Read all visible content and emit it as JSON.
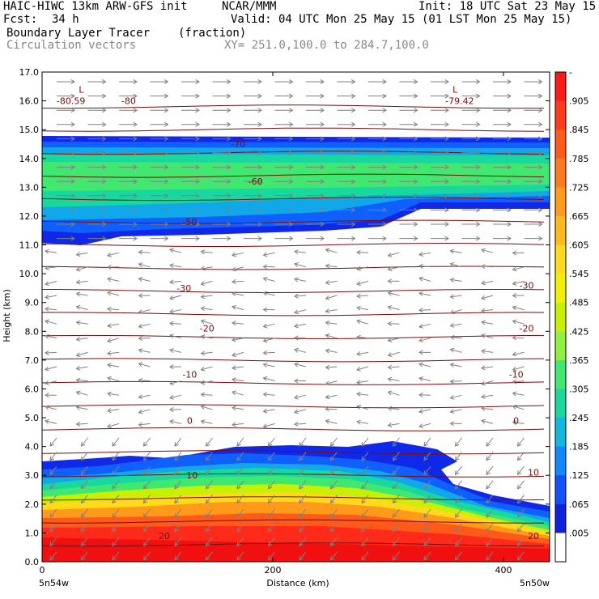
{
  "header": {
    "model": "HAIC-HIWC 13km ARW-GFS init",
    "org": "NCAR/MMM",
    "init": "Init: 18 UTC Sat 23 May 15",
    "fcst_label": "Fcst:",
    "fcst_value": "34 h",
    "valid": "Valid: 04 UTC Mon 25 May 15 (01 LST Mon 25 May 15)",
    "field": "Boundary Layer Tracer",
    "field_units": "(fraction)",
    "vectors": "Circulation vectors",
    "xy": "XY= 251.0,100.0 to 284.7,100.0"
  },
  "chart_data": {
    "type": "heatmap",
    "xlabel": "Distance (km)",
    "ylabel": "Height (km)",
    "xlim": [
      0,
      440
    ],
    "ylim": [
      0,
      17
    ],
    "x_ticks": [
      "0",
      "200",
      "400"
    ],
    "y_ticks": [
      "0.0",
      "1.0",
      "2.0",
      "3.0",
      "4.0",
      "5.0",
      "6.0",
      "7.0",
      "8.0",
      "9.0",
      "10.0",
      "11.0",
      "12.0",
      "13.0",
      "14.0",
      "15.0",
      "16.0",
      "17.0"
    ],
    "x_end_labels": [
      "5n54w",
      "5n50w"
    ],
    "colorbar": {
      "labels": [
        "-",
        ".905",
        ".845",
        ".785",
        ".725",
        ".665",
        ".605",
        ".545",
        ".485",
        ".425",
        ".365",
        ".305",
        ".245",
        ".185",
        ".125",
        ".065",
        ".005"
      ],
      "colors": [
        "#ff1a1a",
        "#ff3a1a",
        "#ff5a1a",
        "#ff7a1a",
        "#ff9a1a",
        "#ffba1a",
        "#ffda1a",
        "#f0f000",
        "#c8f000",
        "#90f040",
        "#40e870",
        "#18d8a0",
        "#10b8e0",
        "#1088ff",
        "#1050ff",
        "#1020e0",
        "#ffffff"
      ]
    },
    "contour_labels": [
      {
        "text": "-80.59",
        "x": 25,
        "y": 16.0
      },
      {
        "text": "-80",
        "x": 75,
        "y": 16.0
      },
      {
        "text": "-79.42",
        "x": 362,
        "y": 16.0
      },
      {
        "text": "L",
        "x": 34,
        "y": 16.4
      },
      {
        "text": "L",
        "x": 358,
        "y": 16.4
      },
      {
        "text": "-70",
        "x": 170,
        "y": 14.5
      },
      {
        "text": "-60",
        "x": 185,
        "y": 13.2
      },
      {
        "text": "-50",
        "x": 128,
        "y": 11.8
      },
      {
        "text": "-30",
        "x": 123,
        "y": 9.5
      },
      {
        "text": "-30",
        "x": 420,
        "y": 9.6
      },
      {
        "text": "-20",
        "x": 143,
        "y": 8.1
      },
      {
        "text": "-20",
        "x": 420,
        "y": 8.1
      },
      {
        "text": "-10",
        "x": 128,
        "y": 6.5
      },
      {
        "text": "-10",
        "x": 411,
        "y": 6.5
      },
      {
        "text": "0",
        "x": 128,
        "y": 4.9
      },
      {
        "text": "0",
        "x": 411,
        "y": 4.9
      },
      {
        "text": "10",
        "x": 130,
        "y": 3.0
      },
      {
        "text": "10",
        "x": 426,
        "y": 3.1
      },
      {
        "text": "20",
        "x": 106,
        "y": 0.9
      },
      {
        "text": "20",
        "x": 426,
        "y": 0.9
      }
    ]
  }
}
